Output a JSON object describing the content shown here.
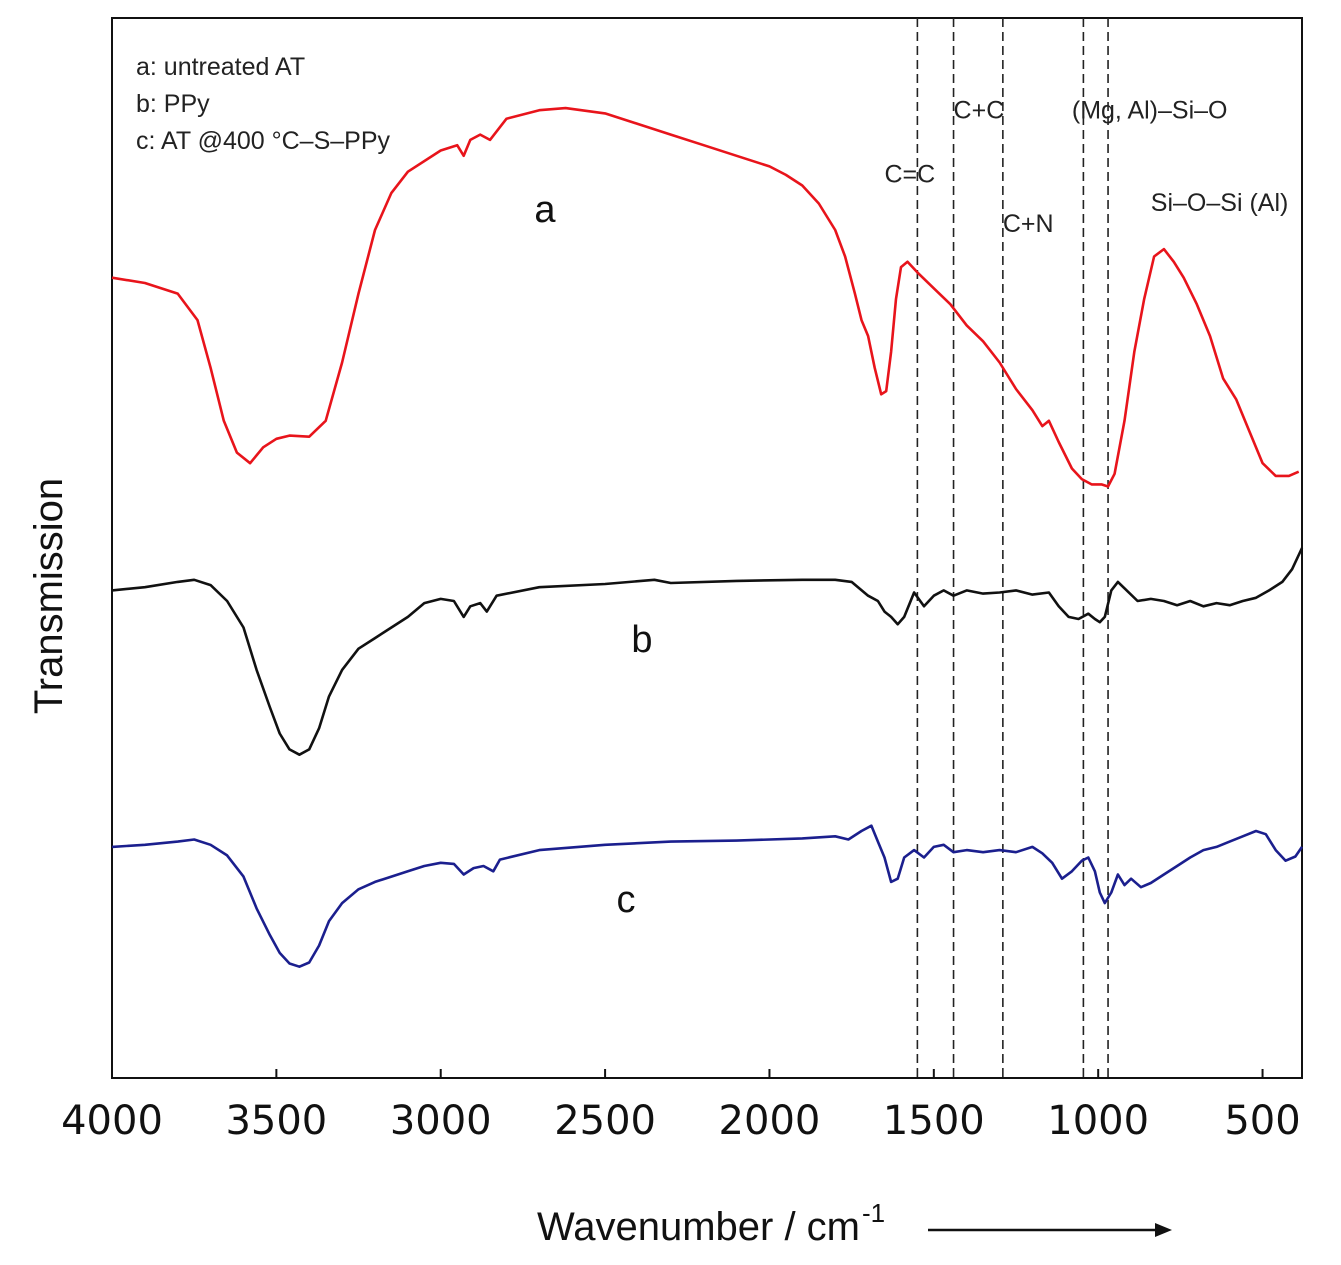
{
  "chart_data": {
    "type": "line",
    "title": "",
    "xlabel": "Wavenumber / cm",
    "xlabel_superscript": "-1",
    "ylabel": "Transmission",
    "xlim": [
      4000,
      380
    ],
    "x_direction": "decreasing",
    "x_ticks": [
      4000,
      3500,
      3000,
      2500,
      2000,
      1500,
      1000,
      500
    ],
    "ylim": [
      0,
      100
    ],
    "y_ticks": [],
    "grid": false,
    "legend_position": "top-left",
    "legend": [
      "a: untreated  AT",
      "b: PPy",
      "c: AT @400 °C–S–PPy"
    ],
    "series": [
      {
        "name": "a",
        "label": "a",
        "color": "#e8141b",
        "points": [
          [
            4000,
            75.5
          ],
          [
            3900,
            75.0
          ],
          [
            3800,
            74.0
          ],
          [
            3740,
            71.5
          ],
          [
            3700,
            67.0
          ],
          [
            3660,
            62.0
          ],
          [
            3620,
            59.0
          ],
          [
            3580,
            58.0
          ],
          [
            3540,
            59.5
          ],
          [
            3500,
            60.3
          ],
          [
            3460,
            60.6
          ],
          [
            3400,
            60.5
          ],
          [
            3350,
            62.0
          ],
          [
            3300,
            67.5
          ],
          [
            3250,
            74.0
          ],
          [
            3200,
            80.0
          ],
          [
            3150,
            83.5
          ],
          [
            3100,
            85.5
          ],
          [
            3000,
            87.5
          ],
          [
            2950,
            88.0
          ],
          [
            2930,
            87.0
          ],
          [
            2910,
            88.5
          ],
          [
            2880,
            89.0
          ],
          [
            2850,
            88.5
          ],
          [
            2800,
            90.5
          ],
          [
            2700,
            91.3
          ],
          [
            2620,
            91.5
          ],
          [
            2500,
            91.0
          ],
          [
            2400,
            90.0
          ],
          [
            2300,
            89.0
          ],
          [
            2200,
            88.0
          ],
          [
            2100,
            87.0
          ],
          [
            2000,
            86.0
          ],
          [
            1950,
            85.2
          ],
          [
            1900,
            84.2
          ],
          [
            1850,
            82.5
          ],
          [
            1800,
            80.0
          ],
          [
            1770,
            77.5
          ],
          [
            1740,
            74.0
          ],
          [
            1720,
            71.5
          ],
          [
            1700,
            70.0
          ],
          [
            1680,
            67.0
          ],
          [
            1660,
            64.5
          ],
          [
            1645,
            64.8
          ],
          [
            1630,
            68.5
          ],
          [
            1615,
            73.5
          ],
          [
            1600,
            76.5
          ],
          [
            1580,
            77.0
          ],
          [
            1550,
            76.0
          ],
          [
            1500,
            74.5
          ],
          [
            1450,
            73.0
          ],
          [
            1400,
            71.0
          ],
          [
            1350,
            69.5
          ],
          [
            1300,
            67.5
          ],
          [
            1250,
            65.0
          ],
          [
            1200,
            63.0
          ],
          [
            1170,
            61.5
          ],
          [
            1150,
            62.0
          ],
          [
            1120,
            60.0
          ],
          [
            1080,
            57.5
          ],
          [
            1050,
            56.5
          ],
          [
            1020,
            56.0
          ],
          [
            990,
            56.0
          ],
          [
            970,
            55.8
          ],
          [
            950,
            57.0
          ],
          [
            920,
            62.0
          ],
          [
            890,
            68.5
          ],
          [
            860,
            73.5
          ],
          [
            830,
            77.5
          ],
          [
            800,
            78.2
          ],
          [
            770,
            77.0
          ],
          [
            740,
            75.5
          ],
          [
            700,
            73.0
          ],
          [
            660,
            70.0
          ],
          [
            620,
            66.0
          ],
          [
            580,
            64.0
          ],
          [
            540,
            61.0
          ],
          [
            500,
            58.0
          ],
          [
            460,
            56.8
          ],
          [
            420,
            56.8
          ],
          [
            390,
            57.2
          ]
        ]
      },
      {
        "name": "b",
        "label": "b",
        "color": "#111111",
        "points": [
          [
            4000,
            46.0
          ],
          [
            3900,
            46.3
          ],
          [
            3800,
            46.8
          ],
          [
            3750,
            47.0
          ],
          [
            3700,
            46.5
          ],
          [
            3650,
            45.0
          ],
          [
            3600,
            42.5
          ],
          [
            3560,
            38.5
          ],
          [
            3520,
            35.0
          ],
          [
            3490,
            32.5
          ],
          [
            3460,
            31.0
          ],
          [
            3430,
            30.5
          ],
          [
            3400,
            31.0
          ],
          [
            3370,
            33.0
          ],
          [
            3340,
            36.0
          ],
          [
            3300,
            38.5
          ],
          [
            3250,
            40.5
          ],
          [
            3200,
            41.5
          ],
          [
            3150,
            42.5
          ],
          [
            3100,
            43.5
          ],
          [
            3050,
            44.8
          ],
          [
            3000,
            45.2
          ],
          [
            2960,
            45.0
          ],
          [
            2930,
            43.5
          ],
          [
            2910,
            44.5
          ],
          [
            2880,
            44.8
          ],
          [
            2860,
            44.0
          ],
          [
            2830,
            45.5
          ],
          [
            2700,
            46.3
          ],
          [
            2500,
            46.6
          ],
          [
            2350,
            47.0
          ],
          [
            2300,
            46.7
          ],
          [
            2100,
            46.9
          ],
          [
            1900,
            47.0
          ],
          [
            1800,
            47.0
          ],
          [
            1750,
            46.8
          ],
          [
            1700,
            45.5
          ],
          [
            1670,
            45.0
          ],
          [
            1650,
            44.0
          ],
          [
            1630,
            43.5
          ],
          [
            1610,
            42.8
          ],
          [
            1590,
            43.5
          ],
          [
            1560,
            45.8
          ],
          [
            1530,
            44.5
          ],
          [
            1500,
            45.5
          ],
          [
            1470,
            46.0
          ],
          [
            1440,
            45.5
          ],
          [
            1400,
            46.0
          ],
          [
            1350,
            45.7
          ],
          [
            1300,
            45.8
          ],
          [
            1250,
            46.0
          ],
          [
            1200,
            45.6
          ],
          [
            1150,
            45.8
          ],
          [
            1120,
            44.5
          ],
          [
            1090,
            43.5
          ],
          [
            1060,
            43.3
          ],
          [
            1030,
            43.8
          ],
          [
            1010,
            43.3
          ],
          [
            995,
            43.0
          ],
          [
            980,
            43.5
          ],
          [
            960,
            46.0
          ],
          [
            940,
            46.8
          ],
          [
            920,
            46.2
          ],
          [
            880,
            45.0
          ],
          [
            840,
            45.2
          ],
          [
            800,
            45.0
          ],
          [
            760,
            44.6
          ],
          [
            720,
            45.0
          ],
          [
            680,
            44.5
          ],
          [
            640,
            44.8
          ],
          [
            600,
            44.6
          ],
          [
            560,
            45.0
          ],
          [
            520,
            45.3
          ],
          [
            480,
            46.0
          ],
          [
            440,
            46.8
          ],
          [
            410,
            48.0
          ],
          [
            380,
            50.0
          ]
        ]
      },
      {
        "name": "c",
        "label": "c",
        "color": "#1b1f8e",
        "points": [
          [
            4000,
            21.8
          ],
          [
            3900,
            22.0
          ],
          [
            3800,
            22.3
          ],
          [
            3750,
            22.5
          ],
          [
            3700,
            22.0
          ],
          [
            3650,
            21.0
          ],
          [
            3600,
            19.0
          ],
          [
            3560,
            16.0
          ],
          [
            3520,
            13.5
          ],
          [
            3490,
            11.8
          ],
          [
            3460,
            10.8
          ],
          [
            3430,
            10.5
          ],
          [
            3400,
            10.9
          ],
          [
            3370,
            12.5
          ],
          [
            3340,
            14.8
          ],
          [
            3300,
            16.5
          ],
          [
            3250,
            17.8
          ],
          [
            3200,
            18.5
          ],
          [
            3150,
            19.0
          ],
          [
            3100,
            19.5
          ],
          [
            3050,
            20.0
          ],
          [
            3000,
            20.3
          ],
          [
            2960,
            20.2
          ],
          [
            2930,
            19.2
          ],
          [
            2900,
            19.8
          ],
          [
            2870,
            20.0
          ],
          [
            2840,
            19.5
          ],
          [
            2820,
            20.6
          ],
          [
            2700,
            21.5
          ],
          [
            2500,
            22.0
          ],
          [
            2300,
            22.3
          ],
          [
            2100,
            22.4
          ],
          [
            1900,
            22.6
          ],
          [
            1800,
            22.8
          ],
          [
            1760,
            22.5
          ],
          [
            1720,
            23.3
          ],
          [
            1690,
            23.8
          ],
          [
            1670,
            22.3
          ],
          [
            1650,
            20.8
          ],
          [
            1630,
            18.5
          ],
          [
            1610,
            18.8
          ],
          [
            1590,
            20.8
          ],
          [
            1560,
            21.5
          ],
          [
            1530,
            20.8
          ],
          [
            1500,
            21.8
          ],
          [
            1470,
            22.0
          ],
          [
            1440,
            21.3
          ],
          [
            1400,
            21.5
          ],
          [
            1350,
            21.3
          ],
          [
            1300,
            21.5
          ],
          [
            1250,
            21.3
          ],
          [
            1200,
            21.8
          ],
          [
            1170,
            21.2
          ],
          [
            1140,
            20.3
          ],
          [
            1110,
            18.8
          ],
          [
            1080,
            19.5
          ],
          [
            1050,
            20.5
          ],
          [
            1030,
            20.8
          ],
          [
            1010,
            19.5
          ],
          [
            995,
            17.5
          ],
          [
            980,
            16.5
          ],
          [
            960,
            17.5
          ],
          [
            940,
            19.2
          ],
          [
            920,
            18.2
          ],
          [
            900,
            18.8
          ],
          [
            870,
            18.0
          ],
          [
            840,
            18.4
          ],
          [
            800,
            19.2
          ],
          [
            760,
            20.0
          ],
          [
            720,
            20.8
          ],
          [
            680,
            21.5
          ],
          [
            640,
            21.8
          ],
          [
            600,
            22.3
          ],
          [
            560,
            22.8
          ],
          [
            520,
            23.3
          ],
          [
            490,
            23.0
          ],
          [
            460,
            21.5
          ],
          [
            430,
            20.5
          ],
          [
            400,
            20.9
          ],
          [
            380,
            21.8
          ]
        ]
      }
    ],
    "reference_lines": [
      {
        "x": 1550
      },
      {
        "x": 1440
      },
      {
        "x": 1290
      },
      {
        "x": 1045
      },
      {
        "x": 970
      }
    ],
    "annotations": [
      {
        "text": "C=C",
        "x": 1650,
        "y": 84.5
      },
      {
        "text": "C+C",
        "x": 1440,
        "y": 90.5
      },
      {
        "text": "(Mg, Al)–Si–O",
        "x": 1080,
        "y": 90.5
      },
      {
        "text": "C+N",
        "x": 1290,
        "y": 79.8
      },
      {
        "text": "Si–O–Si (Al)",
        "x": 840,
        "y": 81.8
      }
    ]
  }
}
